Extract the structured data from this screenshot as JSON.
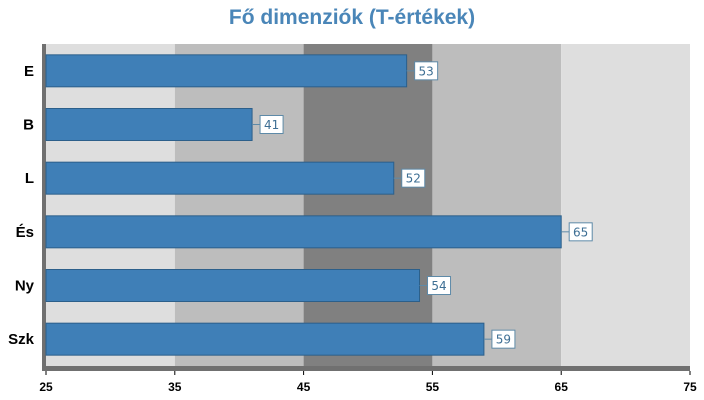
{
  "colors": {
    "title": "#4a86b8",
    "bar_fill": "#3f7fb7",
    "bar_stroke": "#2c5f8a",
    "band_light": "#dedede",
    "band_mid": "#bdbdbd",
    "band_dark": "#808080",
    "axis_bar": "#707070",
    "label_text": "#3e6f94",
    "label_border": "#5e8aa8"
  },
  "chart_data": {
    "type": "bar",
    "orientation": "horizontal",
    "title": "Fő dimenziók (T-értékek)",
    "xlabel": "",
    "ylabel": "",
    "categories": [
      "E",
      "B",
      "L",
      "És",
      "Ny",
      "Szk"
    ],
    "values": [
      53,
      41,
      52,
      65,
      54,
      59
    ],
    "data_labels": [
      "53",
      "41",
      "52",
      "65",
      "54",
      "59"
    ],
    "xlim": [
      25,
      75
    ],
    "x_ticks": [
      25,
      35,
      45,
      55,
      65,
      75
    ],
    "x_tick_labels": [
      "25",
      "35",
      "45",
      "55",
      "65",
      "75"
    ],
    "background_bands": [
      {
        "from": 25,
        "to": 35,
        "shade": "light"
      },
      {
        "from": 35,
        "to": 45,
        "shade": "mid"
      },
      {
        "from": 45,
        "to": 55,
        "shade": "dark"
      },
      {
        "from": 55,
        "to": 65,
        "shade": "mid"
      },
      {
        "from": 65,
        "to": 75,
        "shade": "light"
      }
    ],
    "grid": false,
    "legend": "none"
  }
}
